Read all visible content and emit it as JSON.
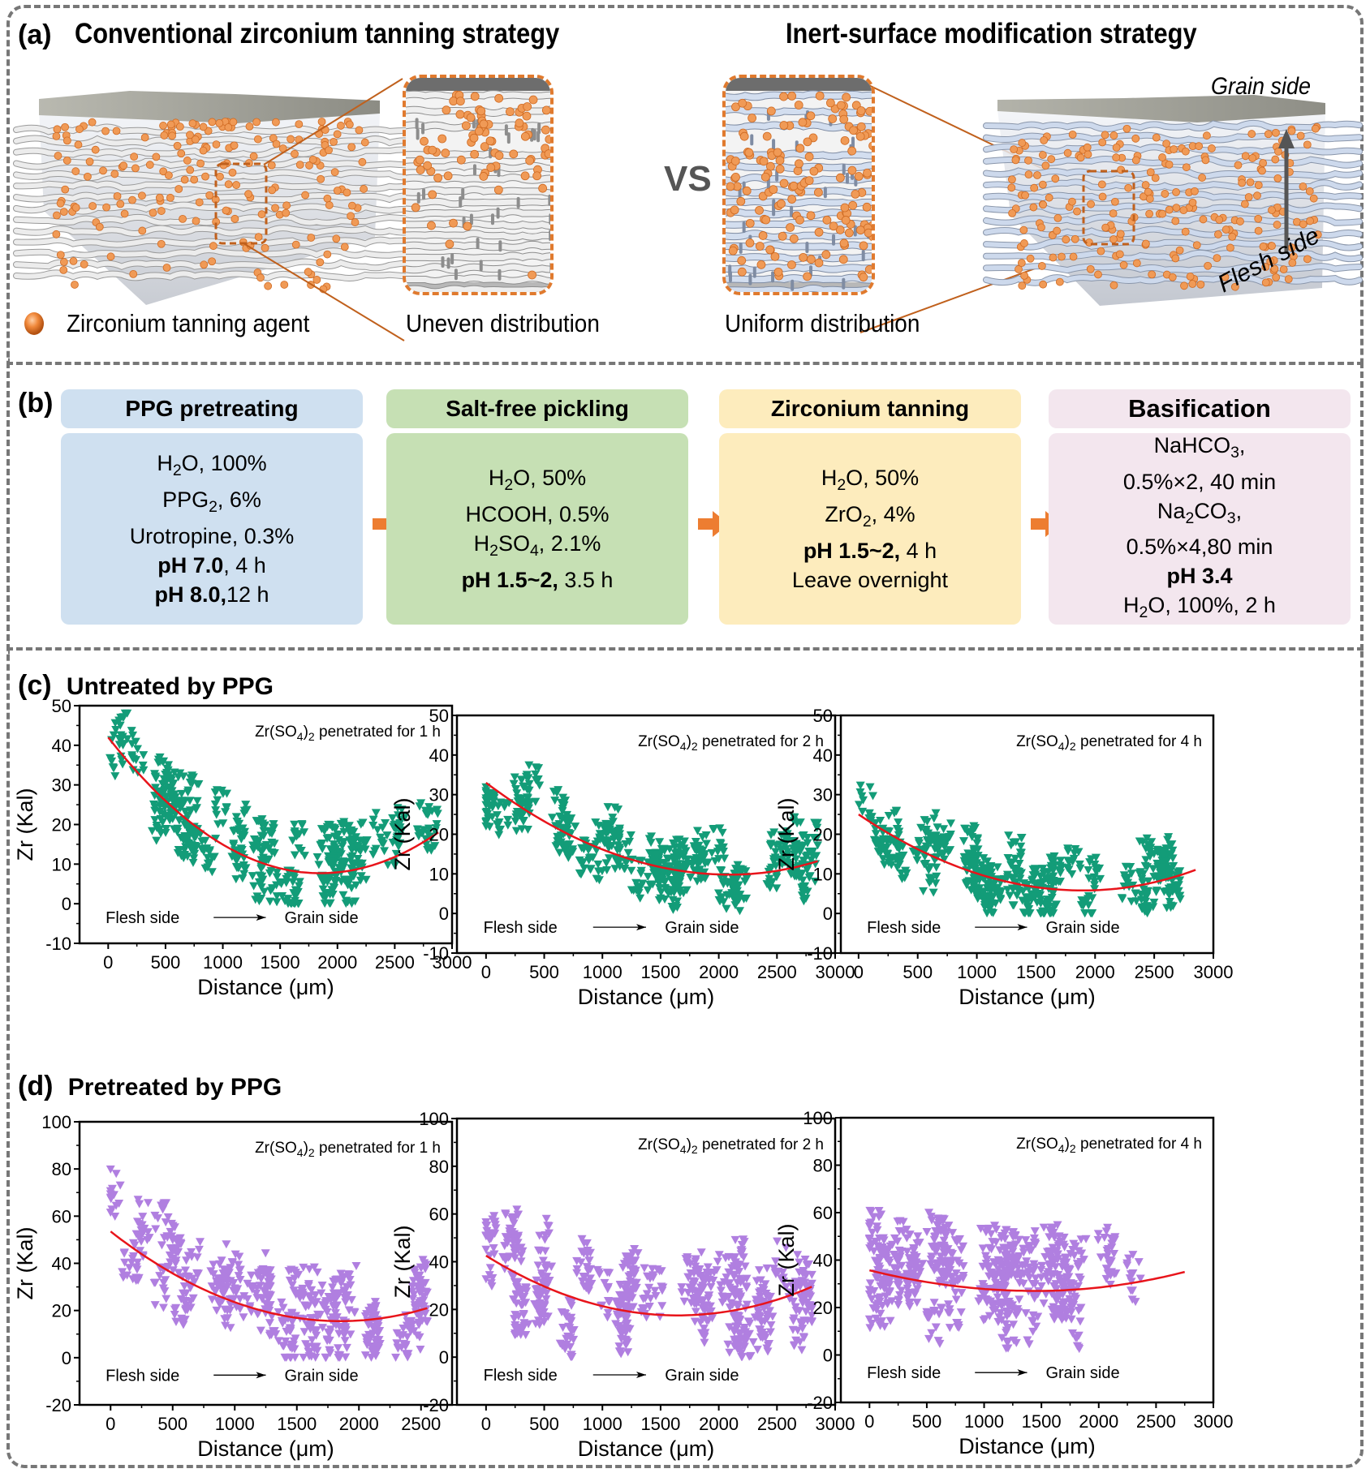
{
  "panel_a": {
    "letter": "(a)",
    "left_title": "Conventional zirconium tanning strategy",
    "right_title": "Inert-surface modification strategy",
    "vs_label": "VS",
    "legend_label": "Zirconium tanning agent",
    "left_caption": "Uneven distribution",
    "right_caption": "Uniform distribution",
    "grain_side_label": "Grain side",
    "flesh_side_label": "Flesh side",
    "colors": {
      "particle": "#f0944d",
      "fiber_conventional": "#e6e6e6",
      "fiber_modified": "#c9d6ea",
      "zoom_border": "#e07a2e",
      "arrow": "#555555"
    }
  },
  "panel_b": {
    "letter": "(b)",
    "steps": [
      {
        "title": "PPG pretreating",
        "header_color": "#cfe0f0",
        "body_color": "#cfe0f0",
        "lines": [
          {
            "parts": [
              {
                "t": "H"
              },
              {
                "t": "2",
                "sub": true
              },
              {
                "t": "O, 100%"
              }
            ]
          },
          {
            "parts": [
              {
                "t": "PPG"
              },
              {
                "t": "2",
                "sub": true
              },
              {
                "t": ", 6%"
              }
            ]
          },
          {
            "parts": [
              {
                "t": "Urotropine, 0.3%"
              }
            ]
          },
          {
            "parts": [
              {
                "t": "pH 7.0",
                "bold": true
              },
              {
                "t": ", 4 h"
              }
            ]
          },
          {
            "parts": [
              {
                "t": "pH 8.0,",
                "bold": true
              },
              {
                "t": "12 h"
              }
            ]
          }
        ]
      },
      {
        "title": "Salt-free pickling",
        "header_color": "#c6e0b4",
        "body_color": "#c6e0b4",
        "lines": [
          {
            "parts": [
              {
                "t": "H"
              },
              {
                "t": "2",
                "sub": true
              },
              {
                "t": "O, 50%"
              }
            ]
          },
          {
            "parts": [
              {
                "t": "HCOOH, 0.5%"
              }
            ]
          },
          {
            "parts": [
              {
                "t": "H"
              },
              {
                "t": "2",
                "sub": true
              },
              {
                "t": "SO"
              },
              {
                "t": "4",
                "sub": true
              },
              {
                "t": ", 2.1%"
              }
            ]
          },
          {
            "parts": [
              {
                "t": "pH 1.5~2,",
                "bold": true
              },
              {
                "t": " 3.5 h"
              }
            ]
          }
        ]
      },
      {
        "title": "Zirconium tanning",
        "header_color": "#fdecbd",
        "body_color": "#fdecbd",
        "lines": [
          {
            "parts": [
              {
                "t": "H"
              },
              {
                "t": "2",
                "sub": true
              },
              {
                "t": "O, 50%"
              }
            ]
          },
          {
            "parts": [
              {
                "t": "ZrO"
              },
              {
                "t": "2",
                "sub": true
              },
              {
                "t": ", 4%"
              }
            ]
          },
          {
            "parts": [
              {
                "t": "pH 1.5~2,",
                "bold": true
              },
              {
                "t": " 4 h"
              }
            ]
          },
          {
            "parts": [
              {
                "t": "Leave overnight"
              }
            ]
          }
        ]
      },
      {
        "title": "Basification",
        "header_color": "#f3e6ee",
        "body_color": "#f3e6ee",
        "lines": [
          {
            "parts": [
              {
                "t": "NaHCO"
              },
              {
                "t": "3",
                "sub": true
              },
              {
                "t": ","
              }
            ]
          },
          {
            "parts": [
              {
                "t": "0.5%×2, 40 min"
              }
            ]
          },
          {
            "parts": [
              {
                "t": "Na"
              },
              {
                "t": "2",
                "sub": true
              },
              {
                "t": "CO"
              },
              {
                "t": "3",
                "sub": true
              },
              {
                "t": ","
              }
            ]
          },
          {
            "parts": [
              {
                "t": "0.5%×4,80 min"
              }
            ]
          },
          {
            "parts": [
              {
                "t": "pH 3.4",
                "bold": true
              }
            ]
          },
          {
            "parts": [
              {
                "t": "H"
              },
              {
                "t": "2",
                "sub": true
              },
              {
                "t": "O, 100%, 2 h"
              }
            ]
          }
        ]
      }
    ],
    "arrow_color": "#ed7d31"
  },
  "panel_c": {
    "letter": "(c)",
    "title": "Untreated by PPG"
  },
  "panel_d": {
    "letter": "(d)",
    "title": "Pretreated by PPG"
  },
  "chart_data": [
    {
      "id": "c1",
      "type": "scatter",
      "panel": "c",
      "annotation_prefix": "Zr(SO",
      "annotation_sub1": "4",
      "annotation_mid": ")",
      "annotation_sub2": "2",
      "annotation_suffix": " penetrated for 1 h",
      "xlabel": "Distance (μm)",
      "ylabel": "Zr (Kal)",
      "xlim": [
        -250,
        3000
      ],
      "ylim": [
        -10,
        50
      ],
      "xticks": [
        0,
        500,
        1000,
        1500,
        2000,
        2500,
        3000
      ],
      "yticks": [
        -10,
        0,
        10,
        20,
        30,
        40,
        50
      ],
      "flesh_label": "Flesh side",
      "grain_label": "Grain side",
      "marker": "triangle-down",
      "color": "#139c78",
      "fit_color": "#e8141b",
      "fit": {
        "type": "quadratic",
        "x_start": 0,
        "x_end": 2880,
        "y_start": 42,
        "x_min": 1850,
        "y_min": 7.7,
        "y_end": 18
      },
      "scatter_x_range": [
        0,
        2880
      ],
      "scatter_spread": 9,
      "n_points": 620,
      "seed": 11,
      "trend_description": "Highest Zr near flesh side (up to ~50), minimum ~8 near 1850 μm, rising to ~18 at grain side"
    },
    {
      "id": "c2",
      "type": "scatter",
      "panel": "c",
      "annotation_prefix": "Zr(SO",
      "annotation_sub1": "4",
      "annotation_mid": ")",
      "annotation_sub2": "2",
      "annotation_suffix": " penetrated for 2 h",
      "xlabel": "Distance (μm)",
      "ylabel": "Zr (Kal)",
      "xlim": [
        -250,
        3000
      ],
      "ylim": [
        -10,
        50
      ],
      "xticks": [
        0,
        500,
        1000,
        1500,
        2000,
        2500,
        3000
      ],
      "yticks": [
        -10,
        0,
        10,
        20,
        30,
        40,
        50
      ],
      "flesh_label": "Flesh side",
      "grain_label": "Grain side",
      "marker": "triangle-down",
      "color": "#139c78",
      "fit_color": "#e8141b",
      "fit": {
        "type": "quadratic",
        "x_start": 0,
        "x_end": 2850,
        "y_start": 33,
        "x_min": 2100,
        "y_min": 9.8,
        "y_end": 13.2
      },
      "scatter_x_range": [
        0,
        2850
      ],
      "scatter_spread": 8,
      "n_points": 650,
      "seed": 23,
      "trend_description": "Starts ~33 at flesh side, minimum ~10 near 2100 μm, ~13 at grain side"
    },
    {
      "id": "c3",
      "type": "scatter",
      "panel": "c",
      "annotation_prefix": "Zr(SO",
      "annotation_sub1": "4",
      "annotation_mid": ")",
      "annotation_sub2": "2",
      "annotation_suffix": " penetrated for 4 h",
      "xlabel": "Distance (μm)",
      "ylabel": "Zr (Kal)",
      "xlim": [
        -150,
        3000
      ],
      "ylim": [
        -10,
        50
      ],
      "xticks": [
        0,
        500,
        1000,
        1500,
        2000,
        2500,
        3000
      ],
      "yticks": [
        -10,
        0,
        10,
        20,
        30,
        40,
        50
      ],
      "flesh_label": "Flesh side",
      "grain_label": "Grain side",
      "marker": "triangle-down",
      "color": "#139c78",
      "fit_color": "#e8141b",
      "fit": {
        "type": "quadratic",
        "x_start": 0,
        "x_end": 2850,
        "y_start": 25,
        "x_min": 1900,
        "y_min": 5.8,
        "y_end": 11
      },
      "scatter_x_range": [
        0,
        2850
      ],
      "scatter_spread": 8,
      "n_points": 620,
      "seed": 37,
      "trend_description": "Starts ~25, minimum ~6 near 1900 μm, ~11 at grain side"
    },
    {
      "id": "d1",
      "type": "scatter",
      "panel": "d",
      "annotation_prefix": "Zr(SO",
      "annotation_sub1": "4",
      "annotation_mid": ")",
      "annotation_sub2": "2",
      "annotation_suffix": " penetrated for 1 h",
      "xlabel": "Distance (μm)",
      "ylabel": "Zr (Kal)",
      "xlim": [
        -250,
        2750
      ],
      "ylim": [
        -20,
        100
      ],
      "xticks": [
        0,
        500,
        1000,
        1500,
        2000,
        2500
      ],
      "yticks": [
        -20,
        0,
        20,
        40,
        60,
        80,
        100
      ],
      "flesh_label": "Flesh side",
      "grain_label": "Grain side",
      "marker": "triangle-down",
      "color": "#b07fe0",
      "fit_color": "#e8141b",
      "fit": {
        "type": "quadratic",
        "x_start": 0,
        "x_end": 2550,
        "y_start": 53.5,
        "x_min": 1850,
        "y_min": 15.5,
        "y_end": 21
      },
      "scatter_x_range": [
        0,
        2550
      ],
      "scatter_spread": 18,
      "n_points": 620,
      "seed": 41,
      "trend_description": "Starts ~54 (peaks ~95 near 100 μm), minimum ~16 near 1850 μm, ~21 at grain side"
    },
    {
      "id": "d2",
      "type": "scatter",
      "panel": "d",
      "annotation_prefix": "Zr(SO",
      "annotation_sub1": "4",
      "annotation_mid": ")",
      "annotation_sub2": "2",
      "annotation_suffix": " penetrated for 2 h",
      "xlabel": "Distance (μm)",
      "ylabel": "Zr (Kal)",
      "xlim": [
        -250,
        3000
      ],
      "ylim": [
        -20,
        100
      ],
      "xticks": [
        0,
        500,
        1000,
        1500,
        2000,
        2500,
        3000
      ],
      "yticks": [
        -20,
        0,
        20,
        40,
        60,
        80,
        100
      ],
      "flesh_label": "Flesh side",
      "grain_label": "Grain side",
      "marker": "triangle-down",
      "color": "#b07fe0",
      "fit_color": "#e8141b",
      "fit": {
        "type": "quadratic",
        "x_start": 0,
        "x_end": 2800,
        "y_start": 42.5,
        "x_min": 1650,
        "y_min": 17.5,
        "y_end": 29.5
      },
      "scatter_x_range": [
        0,
        2800
      ],
      "scatter_spread": 19,
      "n_points": 700,
      "seed": 53,
      "trend_description": "Starts ~42, minimum ~17.5 near 1650 μm, ~29 at grain side"
    },
    {
      "id": "d3",
      "type": "scatter",
      "panel": "d",
      "annotation_prefix": "Zr(SO",
      "annotation_sub1": "4",
      "annotation_mid": ")",
      "annotation_sub2": "2",
      "annotation_suffix": " penetrated for 4 h",
      "xlabel": "Distance (μm)",
      "ylabel": "Zr (Kal)",
      "xlim": [
        -250,
        3000
      ],
      "ylim": [
        -20,
        100
      ],
      "xticks": [
        0,
        500,
        1000,
        1500,
        2000,
        2500,
        3000
      ],
      "yticks": [
        -20,
        0,
        20,
        40,
        60,
        80,
        100
      ],
      "flesh_label": "Flesh side",
      "grain_label": "Grain side",
      "marker": "triangle-down",
      "color": "#b07fe0",
      "fit_color": "#e8141b",
      "fit": {
        "type": "quadratic",
        "x_start": 0,
        "x_end": 2750,
        "y_start": 35.7,
        "x_min": 1450,
        "y_min": 27,
        "y_end": 35
      },
      "scatter_x_range": [
        0,
        2750
      ],
      "scatter_spread": 19,
      "n_points": 720,
      "seed": 67,
      "trend_description": "Nearly flat: ~36 at flesh side, minimum ~27 near 1450 μm, ~35 at grain side"
    }
  ]
}
